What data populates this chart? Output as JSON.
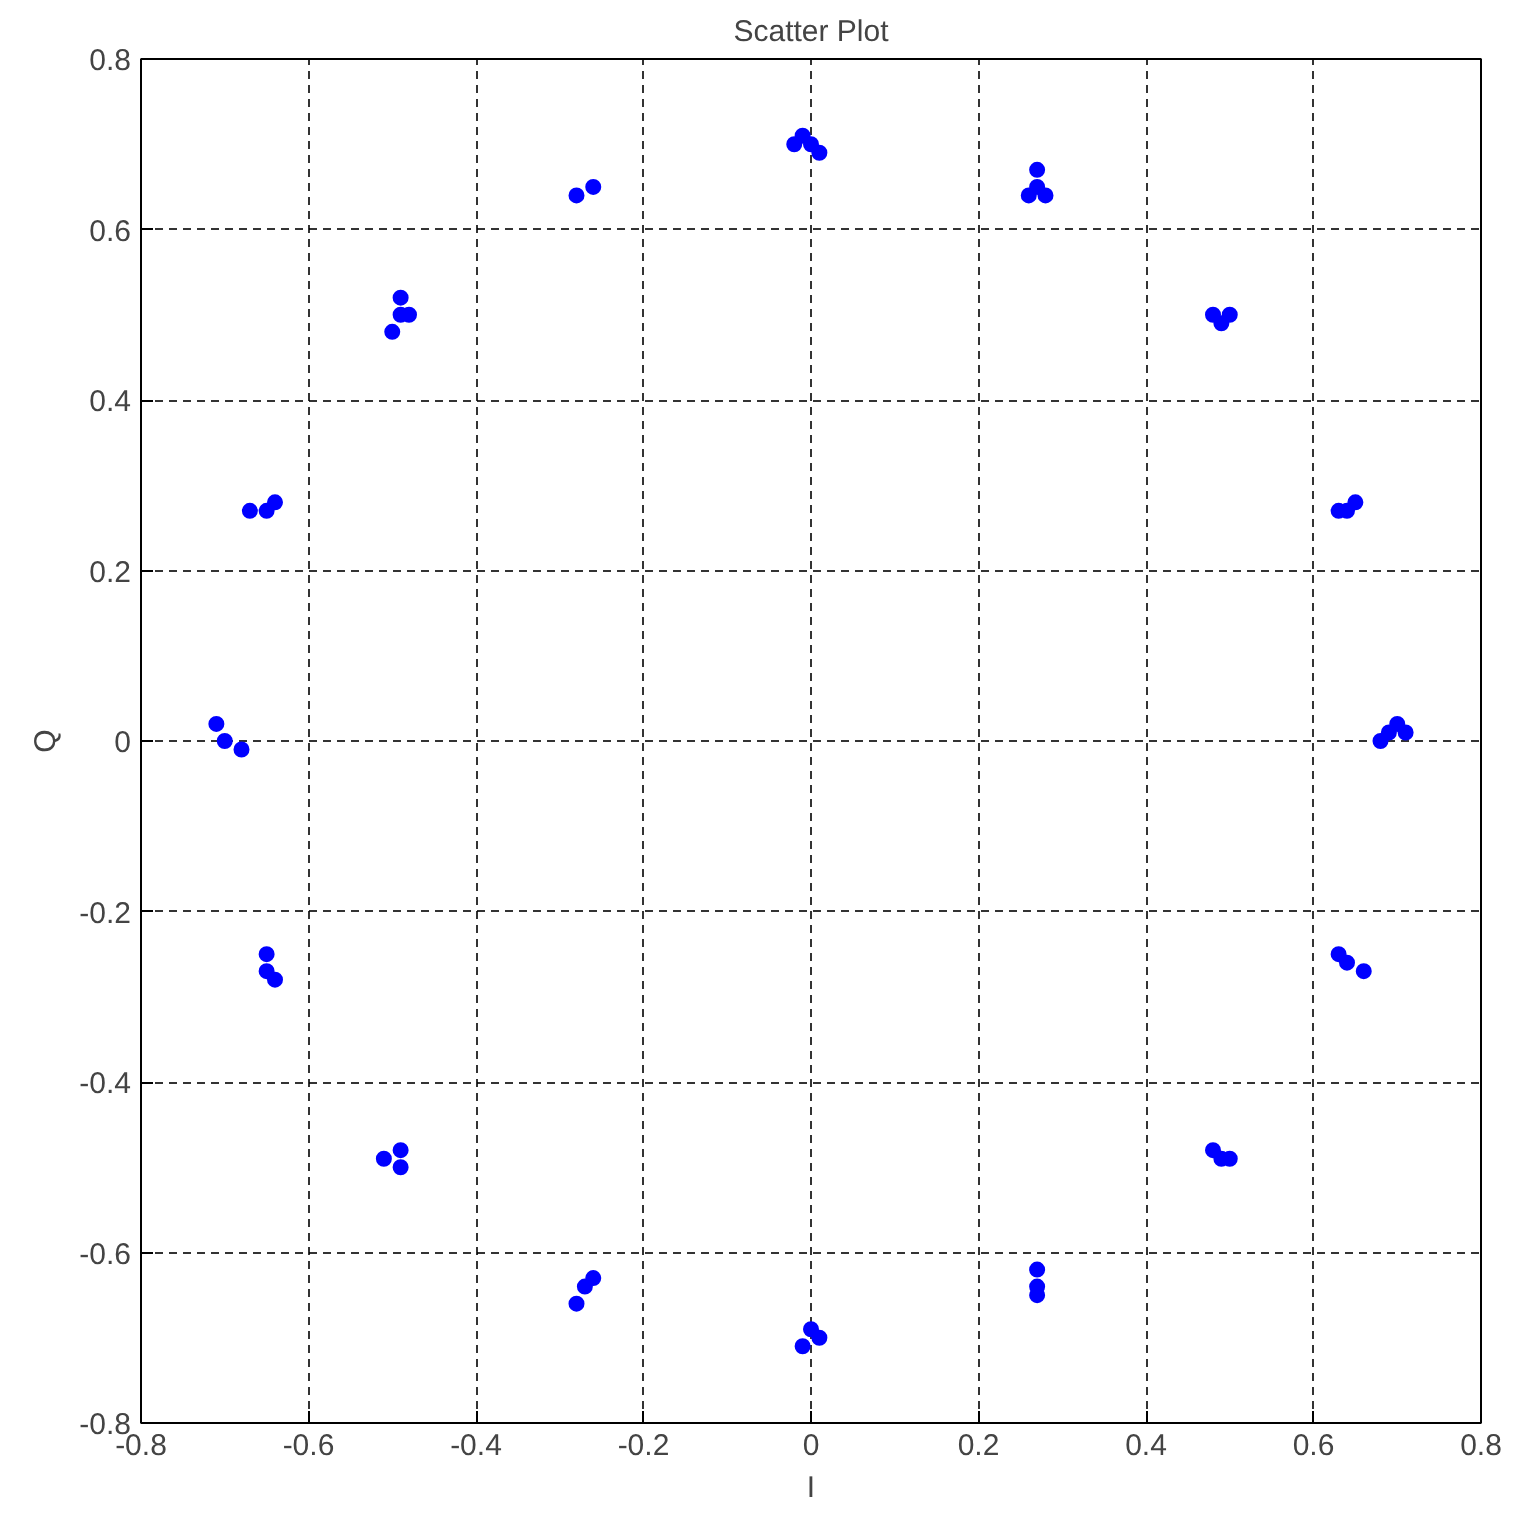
{
  "chart_data": {
    "type": "scatter",
    "title": "Scatter Plot",
    "xlabel": "I",
    "ylabel": "Q",
    "xlim": [
      -0.8,
      0.8
    ],
    "ylim": [
      -0.8,
      0.8
    ],
    "xticks": [
      -0.8,
      -0.6,
      -0.4,
      -0.2,
      0,
      0.2,
      0.4,
      0.6,
      0.8
    ],
    "yticks": [
      -0.8,
      -0.6,
      -0.4,
      -0.2,
      0,
      0.2,
      0.4,
      0.6,
      0.8
    ],
    "grid": true,
    "marker": "circle",
    "series": [
      {
        "color": "#0000ff",
        "x": [
          -0.01,
          0.0,
          0.01,
          -0.02,
          0.27,
          0.27,
          0.26,
          0.28,
          0.48,
          0.49,
          0.5,
          0.63,
          0.64,
          0.65,
          0.68,
          0.69,
          0.7,
          0.71,
          0.63,
          0.64,
          0.66,
          0.48,
          0.49,
          0.5,
          0.27,
          0.27,
          0.27,
          -0.01,
          0.0,
          0.01,
          -0.28,
          -0.27,
          -0.26,
          -0.51,
          -0.49,
          -0.49,
          -0.65,
          -0.65,
          -0.64,
          -0.71,
          -0.7,
          -0.68,
          -0.67,
          -0.65,
          -0.64,
          -0.49,
          -0.49,
          -0.48,
          -0.5,
          -0.28,
          -0.26
        ],
        "values": [
          0.71,
          0.7,
          0.69,
          0.7,
          0.67,
          0.65,
          0.64,
          0.64,
          0.5,
          0.49,
          0.5,
          0.27,
          0.27,
          0.28,
          0.0,
          0.01,
          0.02,
          0.01,
          -0.25,
          -0.26,
          -0.27,
          -0.48,
          -0.49,
          -0.49,
          -0.62,
          -0.64,
          -0.65,
          -0.71,
          -0.69,
          -0.7,
          -0.66,
          -0.64,
          -0.63,
          -0.49,
          -0.48,
          -0.5,
          -0.25,
          -0.27,
          -0.28,
          0.02,
          0.0,
          -0.01,
          0.27,
          0.27,
          0.28,
          0.52,
          0.5,
          0.5,
          0.48,
          0.64,
          0.65
        ]
      }
    ]
  }
}
